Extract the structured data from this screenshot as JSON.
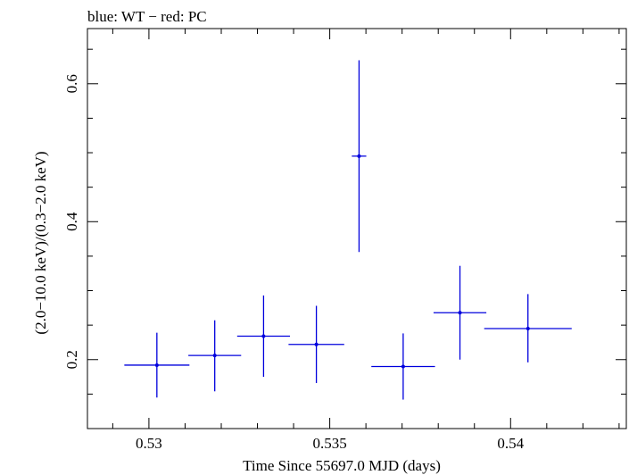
{
  "chart_data": {
    "type": "scatter",
    "title": "blue: WT − red: PC",
    "xlabel": "Time Since 55697.0 MJD (days)",
    "ylabel": "(2.0−10.0 keV)/(0.3−2.0 keV)",
    "xlim": [
      0.5283,
      0.5432
    ],
    "ylim": [
      0.1,
      0.68
    ],
    "xticks": [
      0.53,
      0.535,
      0.54
    ],
    "xtick_labels": [
      "0.53",
      "0.535",
      "0.54"
    ],
    "yticks": [
      0.2,
      0.4,
      0.6
    ],
    "ytick_labels": [
      "0.2",
      "0.4",
      "0.6"
    ],
    "series": [
      {
        "name": "WT",
        "color": "#0000dd",
        "points": [
          {
            "x": 0.53022,
            "xerr": 0.0009,
            "y": 0.192,
            "yerr_low": 0.047,
            "yerr_high": 0.047
          },
          {
            "x": 0.53182,
            "xerr": 0.00073,
            "y": 0.206,
            "yerr_low": 0.052,
            "yerr_high": 0.051
          },
          {
            "x": 0.53317,
            "xerr": 0.00073,
            "y": 0.234,
            "yerr_low": 0.059,
            "yerr_high": 0.059
          },
          {
            "x": 0.53463,
            "xerr": 0.00077,
            "y": 0.222,
            "yerr_low": 0.056,
            "yerr_high": 0.056
          },
          {
            "x": 0.53581,
            "xerr": 0.0002,
            "y": 0.495,
            "yerr_low": 0.139,
            "yerr_high": 0.139
          },
          {
            "x": 0.53703,
            "xerr": 0.00088,
            "y": 0.19,
            "yerr_low": 0.048,
            "yerr_high": 0.048
          },
          {
            "x": 0.5386,
            "xerr": 0.00073,
            "y": 0.268,
            "yerr_low": 0.068,
            "yerr_high": 0.068
          },
          {
            "x": 0.54048,
            "xerr": 0.00121,
            "y": 0.245,
            "yerr_low": 0.049,
            "yerr_high": 0.05
          }
        ]
      }
    ]
  }
}
